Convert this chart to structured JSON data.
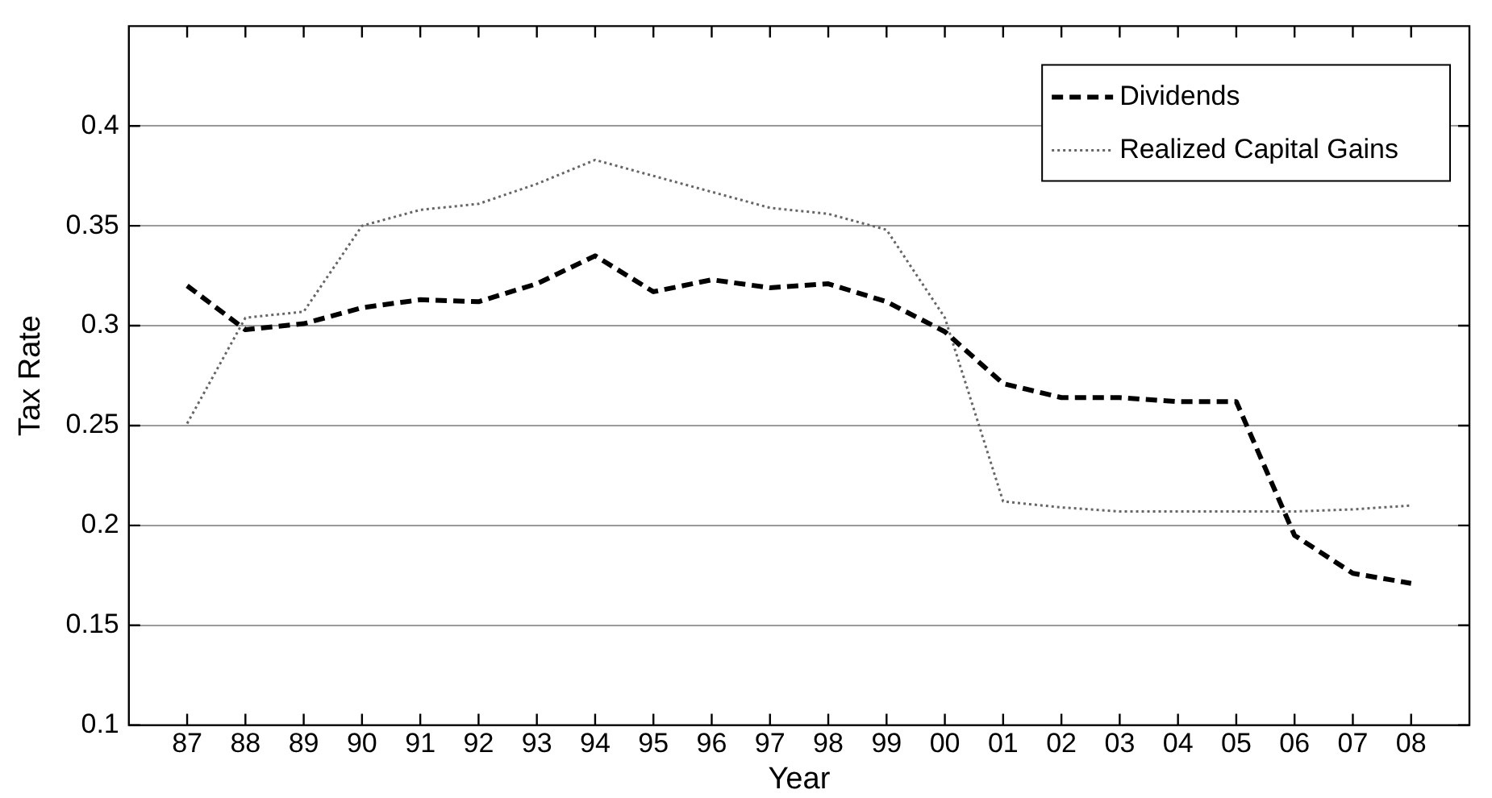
{
  "chart_data": {
    "type": "line",
    "xlabel": "Year",
    "ylabel": "Tax Rate",
    "categories": [
      "87",
      "88",
      "89",
      "90",
      "91",
      "92",
      "93",
      "94",
      "95",
      "96",
      "97",
      "98",
      "99",
      "00",
      "01",
      "02",
      "03",
      "04",
      "05",
      "06",
      "07",
      "08"
    ],
    "series": [
      {
        "name": "Dividends",
        "color": "#000000",
        "line_style": "dashed",
        "values": [
          0.32,
          0.298,
          0.301,
          0.309,
          0.313,
          0.312,
          0.321,
          0.335,
          0.317,
          0.323,
          0.319,
          0.321,
          0.312,
          0.297,
          0.271,
          0.264,
          0.264,
          0.262,
          0.262,
          0.195,
          0.176,
          0.171
        ]
      },
      {
        "name": "Realized Capital Gains",
        "color": "#666666",
        "line_style": "dotted",
        "values": [
          0.251,
          0.304,
          0.307,
          0.35,
          0.358,
          0.361,
          0.371,
          0.383,
          0.375,
          0.367,
          0.359,
          0.356,
          0.348,
          0.304,
          0.212,
          0.209,
          0.207,
          0.207,
          0.207,
          0.207,
          0.208,
          0.21
        ]
      }
    ],
    "ylim": [
      0.1,
      0.45
    ],
    "yticks": [
      0.1,
      0.15,
      0.2,
      0.25,
      0.3,
      0.35,
      0.4
    ],
    "grid": "y",
    "legend": "top right",
    "marker": "none"
  }
}
